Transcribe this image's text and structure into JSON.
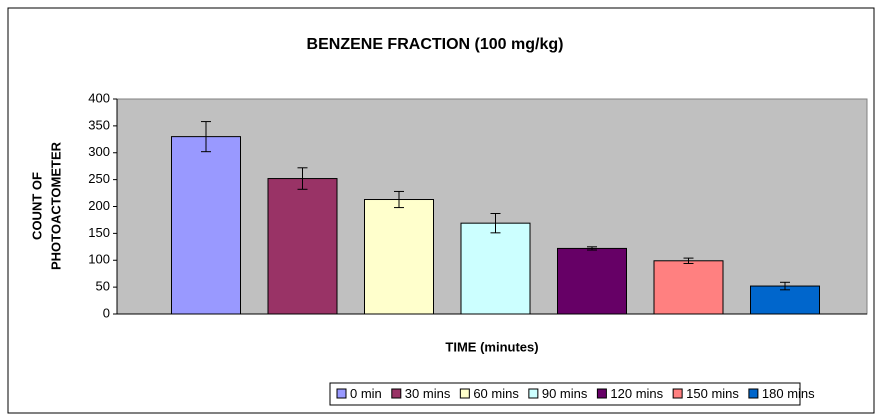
{
  "chart_data": {
    "type": "bar",
    "title": "BENZENE FRACTION (100 mg/kg)",
    "xlabel": "TIME (minutes)",
    "ylabel": [
      "COUNT OF",
      "PHOTOACTOMETER"
    ],
    "ylim": [
      0,
      400
    ],
    "yticks": [
      0,
      50,
      100,
      150,
      200,
      250,
      300,
      350,
      400
    ],
    "grid": false,
    "legend": "bottom",
    "series": [
      {
        "name": "0 min",
        "color": "#9999ff",
        "values": [
          330
        ],
        "errors": [
          28
        ]
      },
      {
        "name": "30 mins",
        "color": "#993366",
        "values": [
          252
        ],
        "errors": [
          20
        ]
      },
      {
        "name": "60 mins",
        "color": "#ffffcc",
        "values": [
          213
        ],
        "errors": [
          15
        ]
      },
      {
        "name": "90 mins",
        "color": "#ccffff",
        "values": [
          169
        ],
        "errors": [
          18
        ]
      },
      {
        "name": "120 mins",
        "color": "#660066",
        "values": [
          122
        ],
        "errors": [
          3
        ]
      },
      {
        "name": "150 mins",
        "color": "#ff8080",
        "values": [
          99
        ],
        "errors": [
          5
        ]
      },
      {
        "name": "180 mins",
        "color": "#0066cc",
        "values": [
          52
        ],
        "errors": [
          7
        ]
      }
    ]
  }
}
